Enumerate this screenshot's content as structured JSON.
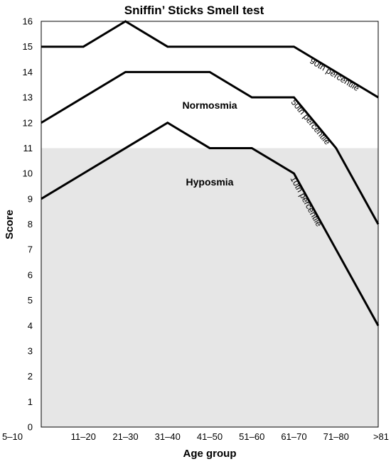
{
  "chart_data": {
    "type": "line",
    "title": "Sniffin’ Sticks Smell test",
    "xlabel": "Age group",
    "ylabel": "Score",
    "categories": [
      "5–10",
      "11–20",
      "21–30",
      "31–40",
      "41–50",
      "51–60",
      "61–70",
      "71–80",
      ">81"
    ],
    "ylim": [
      0,
      16
    ],
    "yticks": [
      0,
      1,
      2,
      3,
      4,
      5,
      6,
      7,
      8,
      9,
      10,
      11,
      12,
      13,
      14,
      15,
      16
    ],
    "grid": false,
    "shaded_region": {
      "from": 0,
      "to": 11,
      "color": "#e6e6e6"
    },
    "region_labels": {
      "upper": "Normosmia",
      "lower": "Hyposmia"
    },
    "series": [
      {
        "name": "90th percentile",
        "values": [
          15,
          15,
          16,
          15,
          15,
          15,
          15,
          14,
          13
        ]
      },
      {
        "name": "50th percentile",
        "values": [
          12,
          13,
          14,
          14,
          14,
          13,
          13,
          11,
          8
        ]
      },
      {
        "name": "10th percentile",
        "values": [
          9,
          10,
          11,
          12,
          11,
          11,
          10,
          7,
          4
        ]
      }
    ],
    "line_color": "#000000",
    "background_color": "#ffffff"
  }
}
